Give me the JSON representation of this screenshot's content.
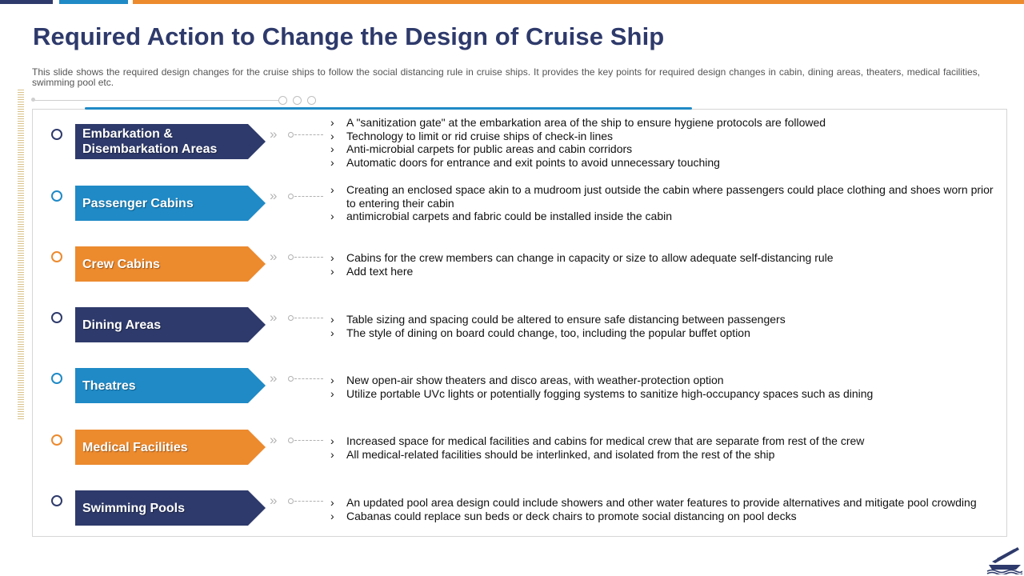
{
  "title": "Required Action to Change the Design of Cruise Ship",
  "subtitle": "This slide shows the required design changes for the cruise ships to follow the social distancing rule in cruise ships. It provides the key points for required design changes in cabin, dining areas, theaters, medical facilities, swimming pool etc.",
  "colors": {
    "navy": "#2e3a6b",
    "blue": "#1f8ac6",
    "orange": "#ec8a2e"
  },
  "rows": [
    {
      "label": "Embarkation & Disembarkation Areas",
      "color": "#2e3a6b",
      "points": [
        "A \"sanitization gate\" at the embarkation area of the ship to ensure hygiene protocols are followed",
        "Technology to limit or rid cruise ships of check-in lines",
        "Anti-microbial carpets for public areas and cabin corridors",
        "Automatic doors for entrance and exit points to avoid unnecessary touching"
      ]
    },
    {
      "label": "Passenger Cabins",
      "color": "#1f8ac6",
      "points": [
        "Creating an enclosed space akin to a mudroom just outside the cabin where passengers could place clothing and shoes worn prior to entering their cabin",
        "antimicrobial carpets and fabric could be installed inside the cabin"
      ]
    },
    {
      "label": "Crew Cabins",
      "color": "#ec8a2e",
      "points": [
        "Cabins for the crew members can change in capacity or size to allow adequate self-distancing rule",
        "Add text here"
      ]
    },
    {
      "label": "Dining Areas",
      "color": "#2e3a6b",
      "points": [
        "Table sizing and spacing could be altered to ensure safe distancing between passengers",
        "The style of dining on board could change, too, including the popular buffet option"
      ]
    },
    {
      "label": "Theatres",
      "color": "#1f8ac6",
      "points": [
        "New open-air show theaters and disco areas, with weather-protection option",
        "Utilize portable UVc lights or potentially fogging systems to sanitize high-occupancy spaces such as dining"
      ]
    },
    {
      "label": "Medical Facilities",
      "color": "#ec8a2e",
      "points": [
        "Increased space for medical facilities and cabins for medical crew that are separate from rest of the crew",
        "All medical-related facilities should be interlinked, and isolated from the rest of the ship"
      ]
    },
    {
      "label": "Swimming Pools",
      "color": "#2e3a6b",
      "points": [
        "An updated pool area design could include showers and other water features to provide alternatives and mitigate pool crowding",
        "Cabanas could replace sun beds or deck chairs to promote social distancing on pool decks"
      ]
    }
  ],
  "icons": {
    "logo": "cruise-ship-icon",
    "chevron": "double-chevron-icon"
  }
}
